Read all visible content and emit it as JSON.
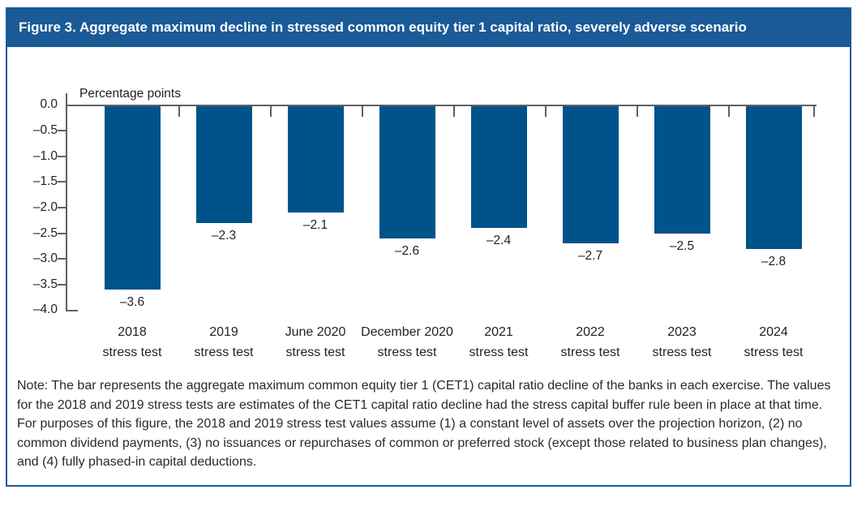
{
  "figure": {
    "title": "Figure 3. Aggregate maximum decline in stressed common equity tier 1 capital ratio, severely adverse scenario",
    "note": "Note: The bar represents the aggregate maximum common equity tier 1 (CET1) capital ratio decline of the banks in each exercise. The values for the 2018 and 2019 stress tests are estimates of the CET1 capital ratio decline had the stress capital buffer rule been in place at that time. For purposes of this figure, the 2018 and 2019 stress test values assume (1) a constant level of assets over the projection horizon, (2) no common dividend payments, (3) no issuances or repurchases of common or preferred stock (except those related to business plan changes), and (4) fully phased-in capital deductions."
  },
  "chart_data": {
    "type": "bar",
    "title": "Figure 3. Aggregate maximum decline in stressed common equity tier 1 capital ratio, severely adverse scenario",
    "categories": [
      "2018",
      "2019",
      "June 2020",
      "December 2020",
      "2021",
      "2022",
      "2023",
      "2024"
    ],
    "category_suffix": "stress test",
    "values": [
      -3.6,
      -2.3,
      -2.1,
      -2.6,
      -2.4,
      -2.7,
      -2.5,
      -2.8
    ],
    "value_labels": [
      "–3.6",
      "–2.3",
      "–2.1",
      "–2.6",
      "–2.4",
      "–2.7",
      "–2.5",
      "–2.8"
    ],
    "xlabel": "",
    "ylabel": "Percentage points",
    "ylim": [
      -4.0,
      0.0
    ],
    "ytick_step": 0.5,
    "ytick_labels": [
      "0.0",
      "–0.5",
      "–1.0",
      "–1.5",
      "–2.0",
      "–2.5",
      "–3.0",
      "–3.5",
      "–4.0"
    ],
    "grid": false,
    "legend_position": "none"
  },
  "colors": {
    "header_bg": "#1a5a96",
    "border": "#1a5a96",
    "bar": "#00538a",
    "axis": "#616161",
    "text": "#231f20"
  }
}
